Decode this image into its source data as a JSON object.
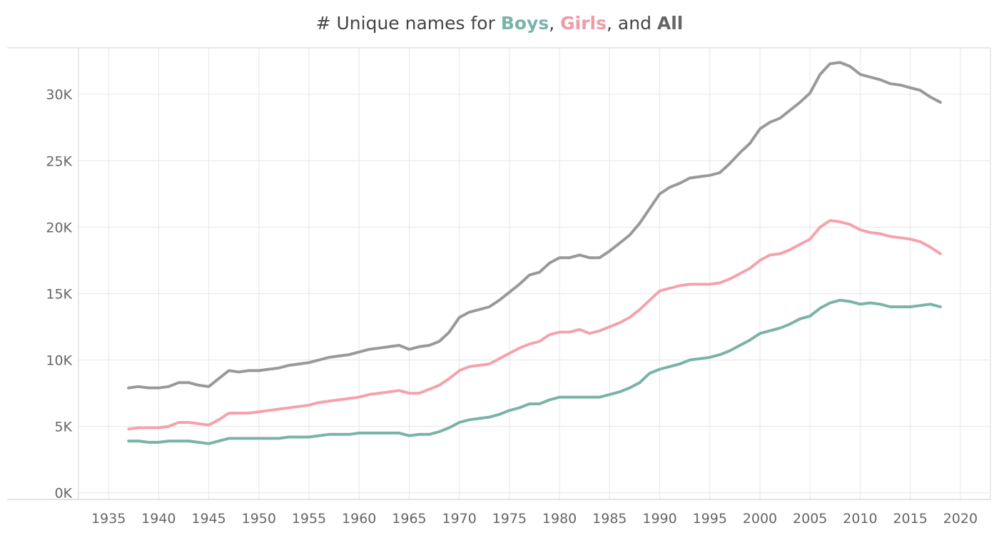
{
  "title": {
    "prefix": "# Unique names for ",
    "boys": "Boys",
    "sep1": ", ",
    "girls": "Girls",
    "sep2": ", and ",
    "all": "All"
  },
  "chart_data": {
    "type": "line",
    "title": "# Unique names for Boys, Girls, and All",
    "xlabel": "",
    "ylabel": "",
    "xlim": [
      1932,
      2023
    ],
    "ylim": [
      -500,
      33500
    ],
    "x_ticks": [
      "1935",
      "1940",
      "1945",
      "1950",
      "1955",
      "1960",
      "1965",
      "1970",
      "1975",
      "1980",
      "1985",
      "1990",
      "1995",
      "2000",
      "2005",
      "2010",
      "2015",
      "2020"
    ],
    "x_tick_values": [
      1935,
      1940,
      1945,
      1950,
      1955,
      1960,
      1965,
      1970,
      1975,
      1980,
      1985,
      1990,
      1995,
      2000,
      2005,
      2010,
      2015,
      2020
    ],
    "y_ticks": [
      "0K",
      "5K",
      "10K",
      "15K",
      "20K",
      "25K",
      "30K"
    ],
    "y_tick_values": [
      0,
      5000,
      10000,
      15000,
      20000,
      25000,
      30000
    ],
    "grid": true,
    "x": [
      1937,
      1938,
      1939,
      1940,
      1941,
      1942,
      1943,
      1944,
      1945,
      1946,
      1947,
      1948,
      1949,
      1950,
      1951,
      1952,
      1953,
      1954,
      1955,
      1956,
      1957,
      1958,
      1959,
      1960,
      1961,
      1962,
      1963,
      1964,
      1965,
      1966,
      1967,
      1968,
      1969,
      1970,
      1971,
      1972,
      1973,
      1974,
      1975,
      1976,
      1977,
      1978,
      1979,
      1980,
      1981,
      1982,
      1983,
      1984,
      1985,
      1986,
      1987,
      1988,
      1989,
      1990,
      1991,
      1992,
      1993,
      1994,
      1995,
      1996,
      1997,
      1998,
      1999,
      2000,
      2001,
      2002,
      2003,
      2004,
      2005,
      2006,
      2007,
      2008,
      2009,
      2010,
      2011,
      2012,
      2013,
      2014,
      2015,
      2016,
      2017,
      2018
    ],
    "series": [
      {
        "key": "all",
        "color": "#999999",
        "values": [
          7900,
          8000,
          7900,
          7900,
          8000,
          8300,
          8300,
          8100,
          8000,
          8600,
          9200,
          9100,
          9200,
          9200,
          9300,
          9400,
          9600,
          9700,
          9800,
          10000,
          10200,
          10300,
          10400,
          10600,
          10800,
          10900,
          11000,
          11100,
          10800,
          11000,
          11100,
          11400,
          12100,
          13200,
          13600,
          13800,
          14000,
          14500,
          15100,
          15700,
          16400,
          16600,
          17300,
          17700,
          17700,
          17900,
          17700,
          17700,
          18200,
          18800,
          19400,
          20300,
          21400,
          22500,
          23000,
          23300,
          23700,
          23800,
          23900,
          24100,
          24800,
          25600,
          26300,
          27400,
          27900,
          28200,
          28800,
          29400,
          30100,
          31500,
          32300,
          32400,
          32100,
          31500,
          31300,
          31100,
          30800,
          30700,
          30500,
          30300,
          29800,
          29400
        ]
      },
      {
        "key": "girls",
        "color": "#f4a3ad",
        "values": [
          4800,
          4900,
          4900,
          4900,
          5000,
          5300,
          5300,
          5200,
          5100,
          5500,
          6000,
          6000,
          6000,
          6100,
          6200,
          6300,
          6400,
          6500,
          6600,
          6800,
          6900,
          7000,
          7100,
          7200,
          7400,
          7500,
          7600,
          7700,
          7500,
          7500,
          7800,
          8100,
          8600,
          9200,
          9500,
          9600,
          9700,
          10100,
          10500,
          10900,
          11200,
          11400,
          11900,
          12100,
          12100,
          12300,
          12000,
          12200,
          12500,
          12800,
          13200,
          13800,
          14500,
          15200,
          15400,
          15600,
          15700,
          15700,
          15700,
          15800,
          16100,
          16500,
          16900,
          17500,
          17900,
          18000,
          18300,
          18700,
          19100,
          20000,
          20500,
          20400,
          20200,
          19800,
          19600,
          19500,
          19300,
          19200,
          19100,
          18900,
          18500,
          18000
        ]
      },
      {
        "key": "boys",
        "color": "#7ab3a8",
        "values": [
          3900,
          3900,
          3800,
          3800,
          3900,
          3900,
          3900,
          3800,
          3700,
          3900,
          4100,
          4100,
          4100,
          4100,
          4100,
          4100,
          4200,
          4200,
          4200,
          4300,
          4400,
          4400,
          4400,
          4500,
          4500,
          4500,
          4500,
          4500,
          4300,
          4400,
          4400,
          4600,
          4900,
          5300,
          5500,
          5600,
          5700,
          5900,
          6200,
          6400,
          6700,
          6700,
          7000,
          7200,
          7200,
          7200,
          7200,
          7200,
          7400,
          7600,
          7900,
          8300,
          9000,
          9300,
          9500,
          9700,
          10000,
          10100,
          10200,
          10400,
          10700,
          11100,
          11500,
          12000,
          12200,
          12400,
          12700,
          13100,
          13300,
          13900,
          14300,
          14500,
          14400,
          14200,
          14300,
          14200,
          14000,
          14000,
          14000,
          14100,
          14200,
          14000
        ]
      }
    ]
  }
}
